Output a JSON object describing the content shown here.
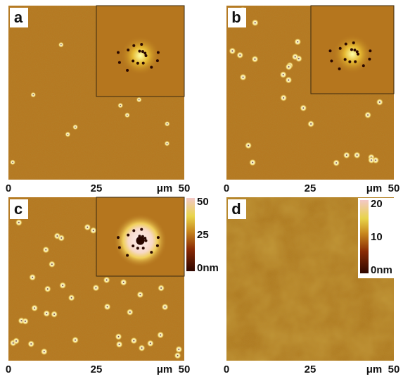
{
  "panels": [
    {
      "label": "a",
      "x_axis": {
        "start": "0",
        "mid": "25",
        "unit": "μm",
        "end": "50"
      }
    },
    {
      "label": "b",
      "x_axis": {
        "start": "0",
        "mid": "25",
        "unit": "μm",
        "end": "50"
      }
    },
    {
      "label": "c",
      "x_axis": {
        "start": "0",
        "mid": "25",
        "unit": "μm",
        "end": "50"
      },
      "colorbar": [
        "50",
        "25",
        "0nm"
      ]
    },
    {
      "label": "d",
      "x_axis": {
        "start": "0",
        "mid": "25",
        "unit": "μm",
        "end": "50"
      },
      "colorbar": [
        "20",
        "10",
        "0nm"
      ]
    }
  ]
}
